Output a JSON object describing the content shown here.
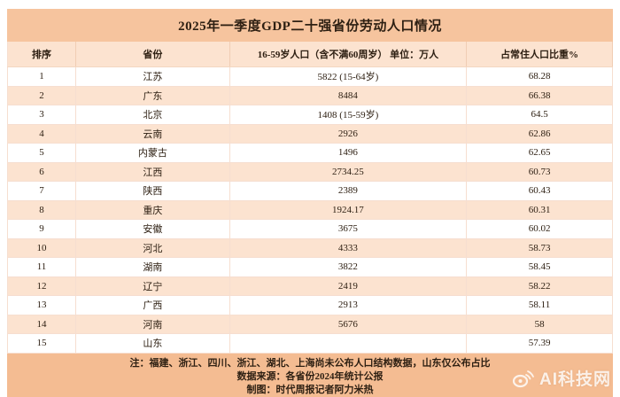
{
  "chart_data": {
    "type": "table",
    "title": "2025年一季度GDP二十强省份劳动人口情况",
    "columns": [
      "排序",
      "省份",
      "16-59岁人口（含不满60周岁） 单位：万人",
      "占常住人口比重%"
    ],
    "rows": [
      [
        "1",
        "江苏",
        "5822 (15-64岁)",
        "68.28"
      ],
      [
        "2",
        "广东",
        "8484",
        "66.38"
      ],
      [
        "3",
        "北京",
        "1408 (15-59岁)",
        "64.5"
      ],
      [
        "4",
        "云南",
        "2926",
        "62.86"
      ],
      [
        "5",
        "内蒙古",
        "1496",
        "62.65"
      ],
      [
        "6",
        "江西",
        "2734.25",
        "60.73"
      ],
      [
        "7",
        "陕西",
        "2389",
        "60.43"
      ],
      [
        "8",
        "重庆",
        "1924.17",
        "60.31"
      ],
      [
        "9",
        "安徽",
        "3675",
        "60.02"
      ],
      [
        "10",
        "河北",
        "4333",
        "58.73"
      ],
      [
        "11",
        "湖南",
        "3822",
        "58.45"
      ],
      [
        "12",
        "辽宁",
        "2419",
        "58.22"
      ],
      [
        "13",
        "广西",
        "2913",
        "58.11"
      ],
      [
        "14",
        "河南",
        "5676",
        "58"
      ],
      [
        "15",
        "山东",
        "",
        "57.39"
      ]
    ],
    "layout": {
      "row_striping": "odd-white-even-peach",
      "grid": "light-peach-borders"
    }
  },
  "footer": {
    "note": "注：福建、浙江、四川、浙江、湖北、上海尚未公布人口结构数据，山东仅公布占比",
    "source": "数据来源：各省份2024年统计公报",
    "credit": "制图：时代周报记者阿力米热"
  },
  "watermark": {
    "icon": "weibo-icon",
    "text": "AI科技网"
  },
  "colors": {
    "title_bar": "#f6c49e",
    "header_row": "#fce3d0",
    "row_alt": "#fce3d0",
    "row_plain": "#ffffff",
    "footer_band": "#f4bc92",
    "text": "#2e2013",
    "watermark_text": "rgba(255,255,255,0.82)"
  }
}
